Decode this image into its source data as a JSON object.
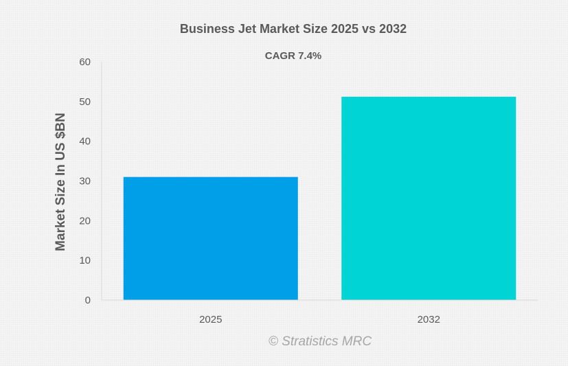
{
  "chart_data": {
    "type": "bar",
    "title": "Business Jet Market Size 2025 vs 2032",
    "subtitle": "CAGR 7.4%",
    "xlabel": "",
    "ylabel": "Market Size In US $BN",
    "categories": [
      "2025",
      "2032"
    ],
    "values": [
      31,
      51.2
    ],
    "bar_colors": [
      "#009fe8",
      "#00d4d4"
    ],
    "ylim": [
      0,
      60
    ],
    "yticks": [
      0,
      10,
      20,
      30,
      40,
      50,
      60
    ],
    "grid": false,
    "legend": "none"
  },
  "watermark": "© Stratistics MRC"
}
